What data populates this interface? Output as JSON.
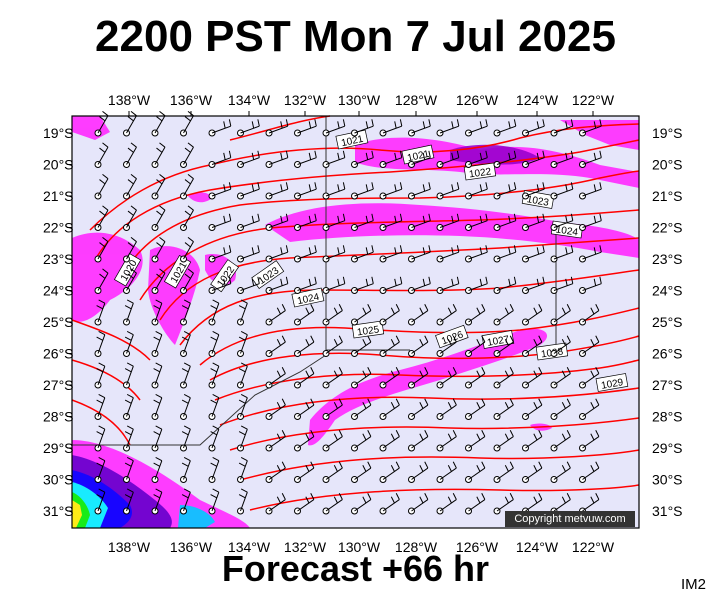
{
  "header": {
    "title": "2200 PST Mon 7 Jul 2025"
  },
  "footer": {
    "forecast": "Forecast +66 hr",
    "code": "IM2",
    "copyright": "Copyright metvuw.com"
  },
  "map": {
    "longitude_labels": [
      "138°W",
      "136°W",
      "134°W",
      "132°W",
      "130°W",
      "128°W",
      "126°W",
      "124°W",
      "122°W"
    ],
    "latitude_labels": [
      "19°S",
      "20°S",
      "21°S",
      "22°S",
      "23°S",
      "24°S",
      "25°S",
      "26°S",
      "27°S",
      "28°S",
      "29°S",
      "30°S",
      "31°S"
    ],
    "isobar_labels": [
      "1020",
      "1021",
      "1022",
      "1023",
      "1024",
      "1025",
      "1026",
      "1027",
      "1028",
      "1029"
    ],
    "colors": {
      "background": "#e6e6fa",
      "rain_light": "#ff00ff",
      "rain_medium": "#9900cc",
      "isobar": "#ff0000",
      "heavy_blue": "#0000ff",
      "heavy_cyan": "#00ffff",
      "heavy_green": "#00ff00"
    }
  }
}
